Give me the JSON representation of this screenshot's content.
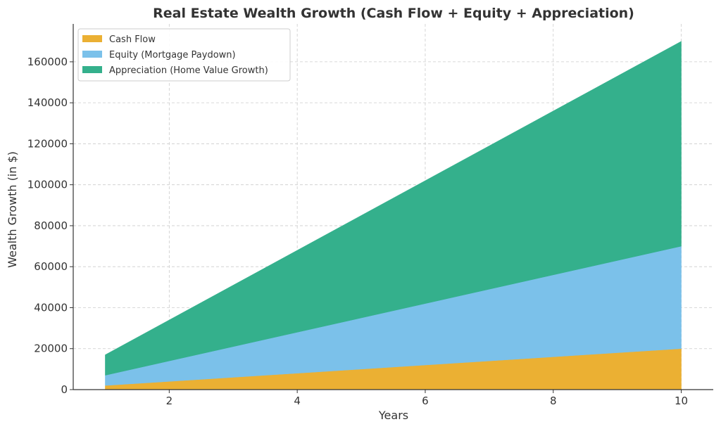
{
  "chart_data": {
    "type": "area",
    "stacked": true,
    "title": "Real Estate Wealth Growth (Cash Flow + Equity + Appreciation)",
    "xlabel": "Years",
    "ylabel": "Wealth Growth (in $)",
    "x": [
      1,
      2,
      3,
      4,
      5,
      6,
      7,
      8,
      9,
      10
    ],
    "xlim": [
      0.5,
      10.5
    ],
    "ylim": [
      0,
      178500
    ],
    "xticks": [
      2,
      4,
      6,
      8,
      10
    ],
    "yticks": [
      0,
      20000,
      40000,
      60000,
      80000,
      100000,
      120000,
      140000,
      160000
    ],
    "grid": true,
    "legend_position": "top-left",
    "series": [
      {
        "name": "Cash Flow",
        "color": "#EBB033",
        "values": [
          2000,
          4000,
          6000,
          8000,
          10000,
          12000,
          14000,
          16000,
          18000,
          20000
        ]
      },
      {
        "name": "Equity (Mortgage Paydown)",
        "color": "#7BC1EA",
        "values": [
          5000,
          10000,
          15000,
          20000,
          25000,
          30000,
          35000,
          40000,
          45000,
          50000
        ]
      },
      {
        "name": "Appreciation (Home Value Growth)",
        "color": "#34B08C",
        "values": [
          10000,
          20000,
          30000,
          40000,
          50000,
          60000,
          70000,
          80000,
          90000,
          100000
        ]
      }
    ]
  }
}
